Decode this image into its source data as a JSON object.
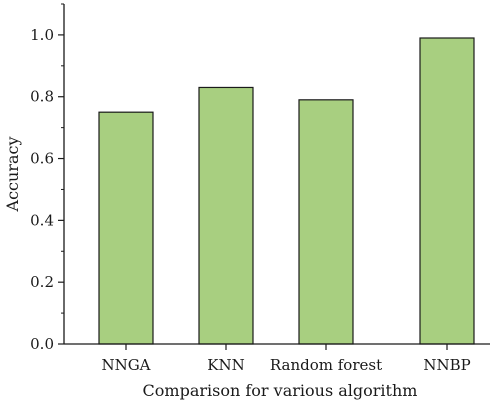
{
  "chart_data": {
    "type": "bar",
    "categories": [
      "NNGA",
      "KNN",
      "Random forest",
      "NNBP"
    ],
    "values": [
      0.75,
      0.83,
      0.79,
      0.99
    ],
    "xlabel": "Comparison for various algorithm",
    "ylabel": "Accuracy",
    "ylim": [
      0,
      1.1
    ],
    "yticks": [
      "0.0",
      "0.2",
      "0.4",
      "0.6",
      "0.8",
      "1.0"
    ],
    "grid": false,
    "legend": "none",
    "colors": {
      "bar_fill": "#a8cf80",
      "bar_stroke": "#1a1a1a",
      "axis": "#1a1a1a"
    }
  }
}
